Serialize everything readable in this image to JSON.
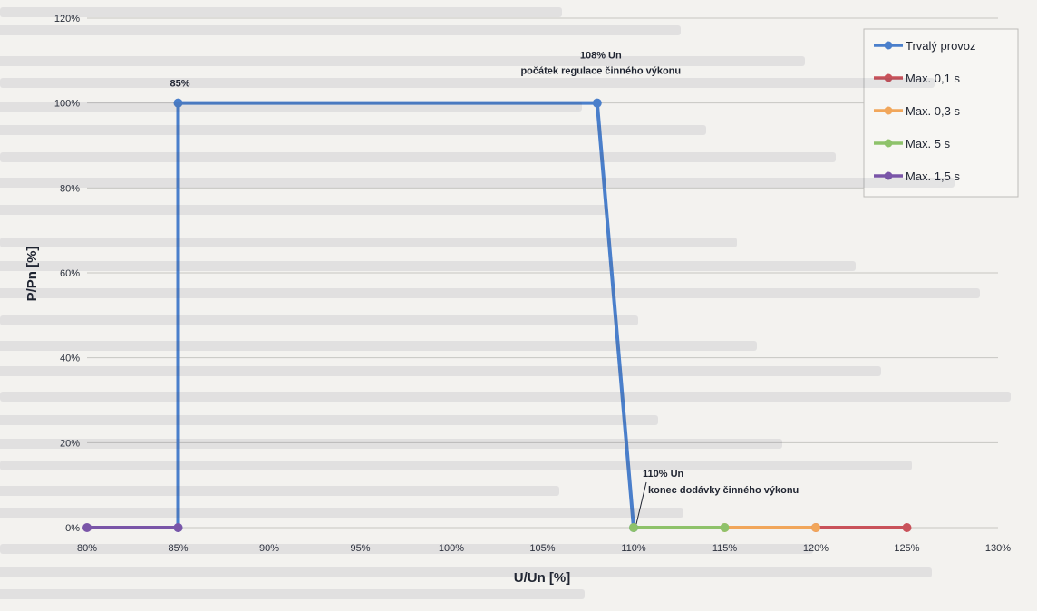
{
  "chart_data": {
    "type": "line",
    "title": "",
    "xlabel": "U/Un [%]",
    "ylabel": "P/Pn [%]",
    "xlim": [
      80,
      130
    ],
    "ylim": [
      0,
      120
    ],
    "x_ticks": [
      "80%",
      "85%",
      "90%",
      "95%",
      "100%",
      "105%",
      "110%",
      "115%",
      "120%",
      "125%",
      "130%"
    ],
    "y_ticks": [
      "0%",
      "20%",
      "40%",
      "60%",
      "80%",
      "100%",
      "120%"
    ],
    "grid": "horizontal",
    "legend": "top-right",
    "series": [
      {
        "name": "Trvalý provoz",
        "color": "#4a7fcb",
        "points": [
          [
            85,
            0
          ],
          [
            85,
            100
          ],
          [
            108,
            100
          ],
          [
            110,
            0
          ]
        ]
      },
      {
        "name": "Max. 0,1 s",
        "color": "#c9525a",
        "points": [
          [
            120,
            0
          ],
          [
            125,
            0
          ]
        ]
      },
      {
        "name": "Max. 0,3 s",
        "color": "#f1a65a",
        "points": [
          [
            115,
            0
          ],
          [
            120,
            0
          ]
        ]
      },
      {
        "name": "Max. 5 s",
        "color": "#8ec26a",
        "points": [
          [
            110,
            0
          ],
          [
            115,
            0
          ]
        ]
      },
      {
        "name": "Max. 1,5 s",
        "color": "#7a55a8",
        "points": [
          [
            80,
            0
          ],
          [
            85,
            0
          ]
        ]
      }
    ],
    "annotations": [
      {
        "id": "a85",
        "x": 85,
        "y": 100,
        "lines": [
          "85%"
        ]
      },
      {
        "id": "a108",
        "x": 108,
        "y": 100,
        "lines": [
          "108% Un",
          "počátek regulace činného výkonu"
        ]
      },
      {
        "id": "a110",
        "x": 110,
        "y": 0,
        "lines": [
          "110% Un",
          "konec dodávky činného výkonu"
        ]
      }
    ]
  }
}
